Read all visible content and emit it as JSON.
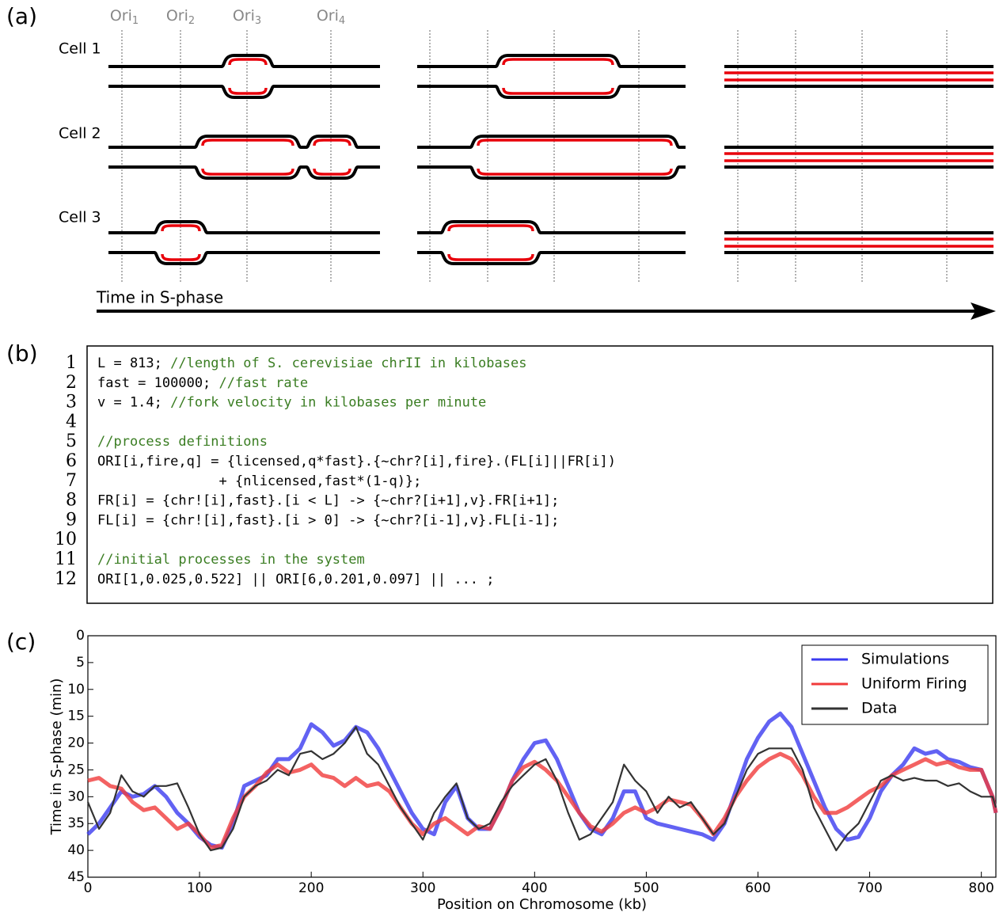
{
  "panel_a": {
    "label": "(a)",
    "origins": [
      {
        "name": "Ori",
        "index": "1"
      },
      {
        "name": "Ori",
        "index": "2"
      },
      {
        "name": "Ori",
        "index": "3"
      },
      {
        "name": "Ori",
        "index": "4"
      }
    ],
    "cells": [
      "Cell 1",
      "Cell 2",
      "Cell 3"
    ],
    "time_axis": "Time in S-phase"
  },
  "panel_b": {
    "label": "(b)",
    "lines": [
      {
        "number": 1,
        "code": "L = 813; ",
        "comment": "//length of S. cerevisiae chrII in kilobases"
      },
      {
        "number": 2,
        "code": "fast = 100000; ",
        "comment": "//fast rate"
      },
      {
        "number": 3,
        "code": "v = 1.4; ",
        "comment": "//fork velocity in kilobases per minute"
      },
      {
        "number": 4
      },
      {
        "number": 5,
        "comment": "//process definitions"
      },
      {
        "number": 6,
        "code": "ORI[i,fire,q] = {licensed,q*fast}.{~chr?[i],fire}.(FL[i]||FR[i])"
      },
      {
        "number": 7,
        "code": "               + {nlicensed,fast*(1-q)};"
      },
      {
        "number": 8,
        "code": "FR[i] = {chr![i],fast}.[i < L] -> {~chr?[i+1],v}.FR[i+1];"
      },
      {
        "number": 9,
        "code": "FL[i] = {chr![i],fast}.[i > 0] -> {~chr?[i-1],v}.FL[i-1];"
      },
      {
        "number": 10
      },
      {
        "number": 11,
        "comment": "//initial processes in the system"
      },
      {
        "number": 12,
        "code": "ORI[1,0.025,0.522] || ORI[6,0.201,0.097] || ... ;"
      }
    ]
  },
  "chart_data": {
    "type": "line",
    "panel_label": "(c)",
    "x_label": "Position on Chromosome (kb)",
    "y_label": "Time in S-phase (min)",
    "xlim": [
      0,
      813
    ],
    "xticks": [
      0,
      100,
      200,
      300,
      400,
      500,
      600,
      700,
      800
    ],
    "ylim": [
      0,
      45
    ],
    "yticks": [
      0,
      5,
      10,
      15,
      20,
      25,
      30,
      35,
      40,
      45
    ],
    "y_inverted": true,
    "legend": "upper right",
    "x": [
      0,
      10,
      20,
      30,
      40,
      50,
      60,
      70,
      80,
      90,
      100,
      110,
      120,
      130,
      140,
      150,
      160,
      170,
      180,
      190,
      200,
      210,
      220,
      230,
      240,
      250,
      260,
      270,
      280,
      290,
      300,
      310,
      320,
      330,
      340,
      350,
      360,
      370,
      380,
      390,
      400,
      410,
      420,
      430,
      440,
      450,
      460,
      470,
      480,
      490,
      500,
      510,
      520,
      530,
      540,
      550,
      560,
      570,
      580,
      590,
      600,
      610,
      620,
      630,
      640,
      650,
      660,
      670,
      680,
      690,
      700,
      710,
      720,
      730,
      740,
      750,
      760,
      770,
      780,
      790,
      800,
      810,
      813
    ],
    "series": [
      {
        "name": "Simulations",
        "color": "#3b3bf0",
        "values": [
          37,
          35,
          32,
          29,
          30,
          29.5,
          28,
          30,
          33,
          35,
          37.5,
          39,
          39.5,
          35,
          28,
          27,
          26,
          23,
          23,
          21,
          16.5,
          18,
          20.5,
          19.5,
          17,
          18,
          21,
          25,
          29,
          33,
          36,
          37,
          31,
          28,
          34,
          36,
          36,
          32,
          27,
          23,
          20,
          19.5,
          23,
          28,
          33,
          36,
          37,
          34,
          29,
          29,
          34,
          35,
          35.5,
          36,
          36.5,
          37,
          38,
          35,
          29,
          23,
          19,
          16,
          14.5,
          17,
          22,
          27,
          32,
          36,
          38,
          37.5,
          34,
          29,
          26,
          24,
          21,
          22,
          21.5,
          23,
          23.5,
          24.5,
          25,
          30,
          33
        ]
      },
      {
        "name": "Uniform Firing",
        "color": "#f03b3b",
        "values": [
          27,
          26.5,
          28,
          28.5,
          31,
          32.5,
          32,
          34,
          36,
          35,
          37,
          39.5,
          39,
          34,
          30,
          28,
          25.5,
          24,
          25.5,
          25,
          24,
          26,
          26.5,
          28,
          26.5,
          28,
          27.5,
          29,
          32,
          35,
          37,
          35,
          34,
          35.5,
          37,
          35.5,
          36,
          32,
          27,
          24.5,
          23.5,
          25,
          27,
          30,
          33,
          35.5,
          36.5,
          35,
          33,
          32,
          33,
          32,
          30.5,
          31,
          31.5,
          34,
          37,
          34,
          30,
          27,
          24.5,
          23,
          22,
          23,
          26,
          30,
          33,
          33,
          32,
          30.5,
          29,
          28,
          26,
          25,
          24,
          23,
          24,
          23.5,
          24.5,
          25,
          25,
          30,
          33
        ]
      },
      {
        "name": "Data",
        "color": "#333333",
        "values": [
          31,
          36,
          33,
          26,
          29,
          30,
          28,
          28,
          27.5,
          32,
          37,
          40,
          39.5,
          36,
          30,
          28,
          27,
          25,
          26,
          22,
          21.5,
          23,
          22,
          20,
          17,
          22,
          24,
          28,
          32,
          35,
          38,
          33,
          30,
          27.5,
          34,
          36,
          35,
          31,
          28,
          26,
          24,
          23,
          27,
          33,
          38,
          37,
          34,
          31,
          24,
          27,
          29,
          33,
          30,
          32,
          31,
          34,
          37,
          35,
          30,
          25,
          22,
          21,
          21,
          21,
          25,
          32,
          36,
          40,
          37,
          35,
          31,
          27,
          26,
          27,
          26.5,
          27,
          27,
          28,
          27.5,
          29,
          30,
          30,
          32
        ]
      }
    ]
  }
}
